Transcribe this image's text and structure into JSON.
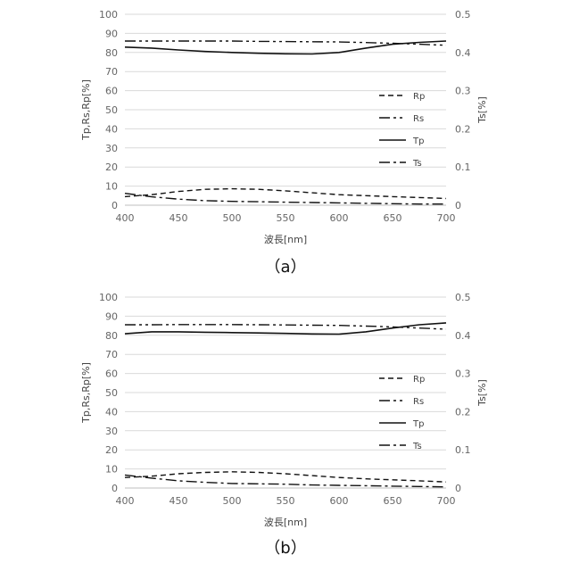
{
  "chart_data": [
    {
      "type": "line",
      "caption": "（a）",
      "xlabel": "波長[nm]",
      "ylabel": "Tp,Rs,Rp[%]",
      "y2label": "Ts[%]",
      "xlim": [
        400,
        700
      ],
      "ylim": [
        0,
        100
      ],
      "y2lim": [
        0,
        0.5
      ],
      "xticks": [
        400,
        450,
        500,
        550,
        600,
        650,
        700
      ],
      "yticks": [
        0,
        10,
        20,
        30,
        40,
        50,
        60,
        70,
        80,
        90,
        100
      ],
      "y2ticks": [
        0,
        0.1,
        0.2,
        0.3,
        0.4,
        0.5
      ],
      "grid": "horizontal",
      "legend": "right",
      "x": [
        400,
        425,
        450,
        475,
        500,
        525,
        550,
        575,
        600,
        625,
        650,
        675,
        700
      ],
      "series": [
        {
          "name": "Rp",
          "axis": "left",
          "dash": "dashed",
          "values": [
            4.5,
            5.5,
            7.2,
            8.3,
            8.6,
            8.3,
            7.5,
            6.5,
            5.5,
            5.0,
            4.5,
            4.0,
            3.5
          ]
        },
        {
          "name": "Rs",
          "axis": "left",
          "dash": "dash-dot-dot",
          "values": [
            86.0,
            86.0,
            86.0,
            86.0,
            86.0,
            85.8,
            85.7,
            85.6,
            85.5,
            85.2,
            84.8,
            84.3,
            83.8
          ]
        },
        {
          "name": "Tp",
          "axis": "left",
          "dash": "solid",
          "values": [
            82.8,
            82.3,
            81.3,
            80.5,
            80.0,
            79.6,
            79.3,
            79.2,
            80.0,
            82.3,
            84.3,
            85.3,
            86.0
          ]
        },
        {
          "name": "Ts",
          "axis": "right",
          "dash": "dash-dot",
          "values": [
            0.031,
            0.022,
            0.016,
            0.012,
            0.01,
            0.009,
            0.008,
            0.007,
            0.006,
            0.005,
            0.004,
            0.003,
            0.003
          ]
        }
      ]
    },
    {
      "type": "line",
      "caption": "（b）",
      "xlabel": "波長[nm]",
      "ylabel": "Tp,Rs,Rp[%]",
      "y2label": "Ts[%]",
      "xlim": [
        400,
        700
      ],
      "ylim": [
        0,
        100
      ],
      "y2lim": [
        0,
        0.5
      ],
      "xticks": [
        400,
        450,
        500,
        550,
        600,
        650,
        700
      ],
      "yticks": [
        0,
        10,
        20,
        30,
        40,
        50,
        60,
        70,
        80,
        90,
        100
      ],
      "y2ticks": [
        0,
        0.1,
        0.2,
        0.3,
        0.4,
        0.5
      ],
      "grid": "horizontal",
      "legend": "right",
      "x": [
        400,
        425,
        450,
        475,
        500,
        525,
        550,
        575,
        600,
        625,
        650,
        675,
        700
      ],
      "series": [
        {
          "name": "Rp",
          "axis": "left",
          "dash": "dashed",
          "values": [
            5.5,
            6.2,
            7.5,
            8.2,
            8.5,
            8.2,
            7.5,
            6.5,
            5.5,
            4.8,
            4.3,
            3.8,
            3.2
          ]
        },
        {
          "name": "Rs",
          "axis": "left",
          "dash": "dash-dot-dot",
          "values": [
            85.5,
            85.5,
            85.6,
            85.6,
            85.6,
            85.5,
            85.4,
            85.3,
            85.2,
            84.8,
            84.4,
            83.8,
            83.2
          ]
        },
        {
          "name": "Tp",
          "axis": "left",
          "dash": "solid",
          "values": [
            80.8,
            81.8,
            81.8,
            81.6,
            81.4,
            81.2,
            81.0,
            80.7,
            80.6,
            81.8,
            83.8,
            85.5,
            86.5
          ]
        },
        {
          "name": "Ts",
          "axis": "right",
          "dash": "dash-dot",
          "values": [
            0.034,
            0.026,
            0.019,
            0.015,
            0.012,
            0.011,
            0.01,
            0.008,
            0.007,
            0.006,
            0.005,
            0.004,
            0.003
          ]
        }
      ]
    }
  ]
}
